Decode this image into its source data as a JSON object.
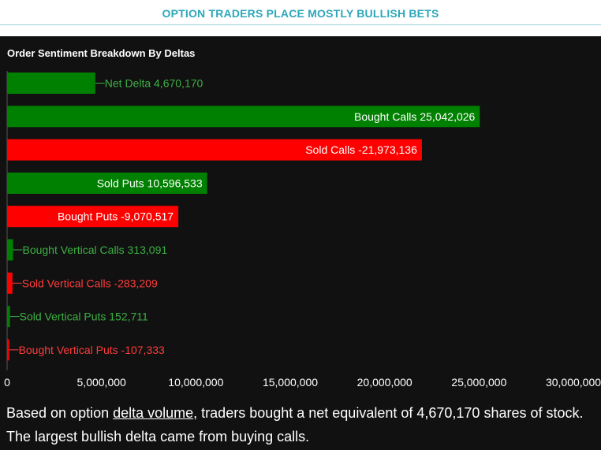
{
  "header": {
    "title": "OPTION TRADERS PLACE MOSTLY BULLISH BETS"
  },
  "caption": {
    "before": "Based on option ",
    "link": "delta volume",
    "after": ", traders bought a net equivalent of 4,670,170 shares of stock. The largest bullish delta came from buying calls."
  },
  "colors": {
    "positive": "#008000",
    "negative": "#ff0000",
    "positive_label": "#3cb043",
    "negative_label": "#ff3b3b",
    "axis_label": "#ffffff"
  },
  "chart_data": {
    "type": "bar",
    "orientation": "horizontal",
    "title": "Order Sentiment Breakdown By Deltas",
    "categories": [
      "Net Delta",
      "Bought Calls",
      "Sold Calls",
      "Sold Puts",
      "Bought Puts",
      "Bought Vertical Calls",
      "Sold Vertical Calls",
      "Sold Vertical Puts",
      "Bought Vertical Puts"
    ],
    "values": [
      4670170,
      25042026,
      -21973136,
      10596533,
      -9070517,
      313091,
      -283209,
      152711,
      -107333
    ],
    "value_labels": [
      "4,670,170",
      "25,042,026",
      "-21,973,136",
      "10,596,533",
      "-9,070,517",
      "313,091",
      "-283,209",
      "152,711",
      "-107,333"
    ],
    "bar_length": "absolute value",
    "xlim": [
      0,
      30000000
    ],
    "xticks": [
      0,
      5000000,
      10000000,
      15000000,
      20000000,
      25000000,
      30000000
    ],
    "xtick_labels": [
      "0",
      "5,000,000",
      "10,000,000",
      "15,000,000",
      "20,000,000",
      "25,000,000",
      "30,000,000"
    ],
    "grid": false,
    "legend": "none"
  }
}
